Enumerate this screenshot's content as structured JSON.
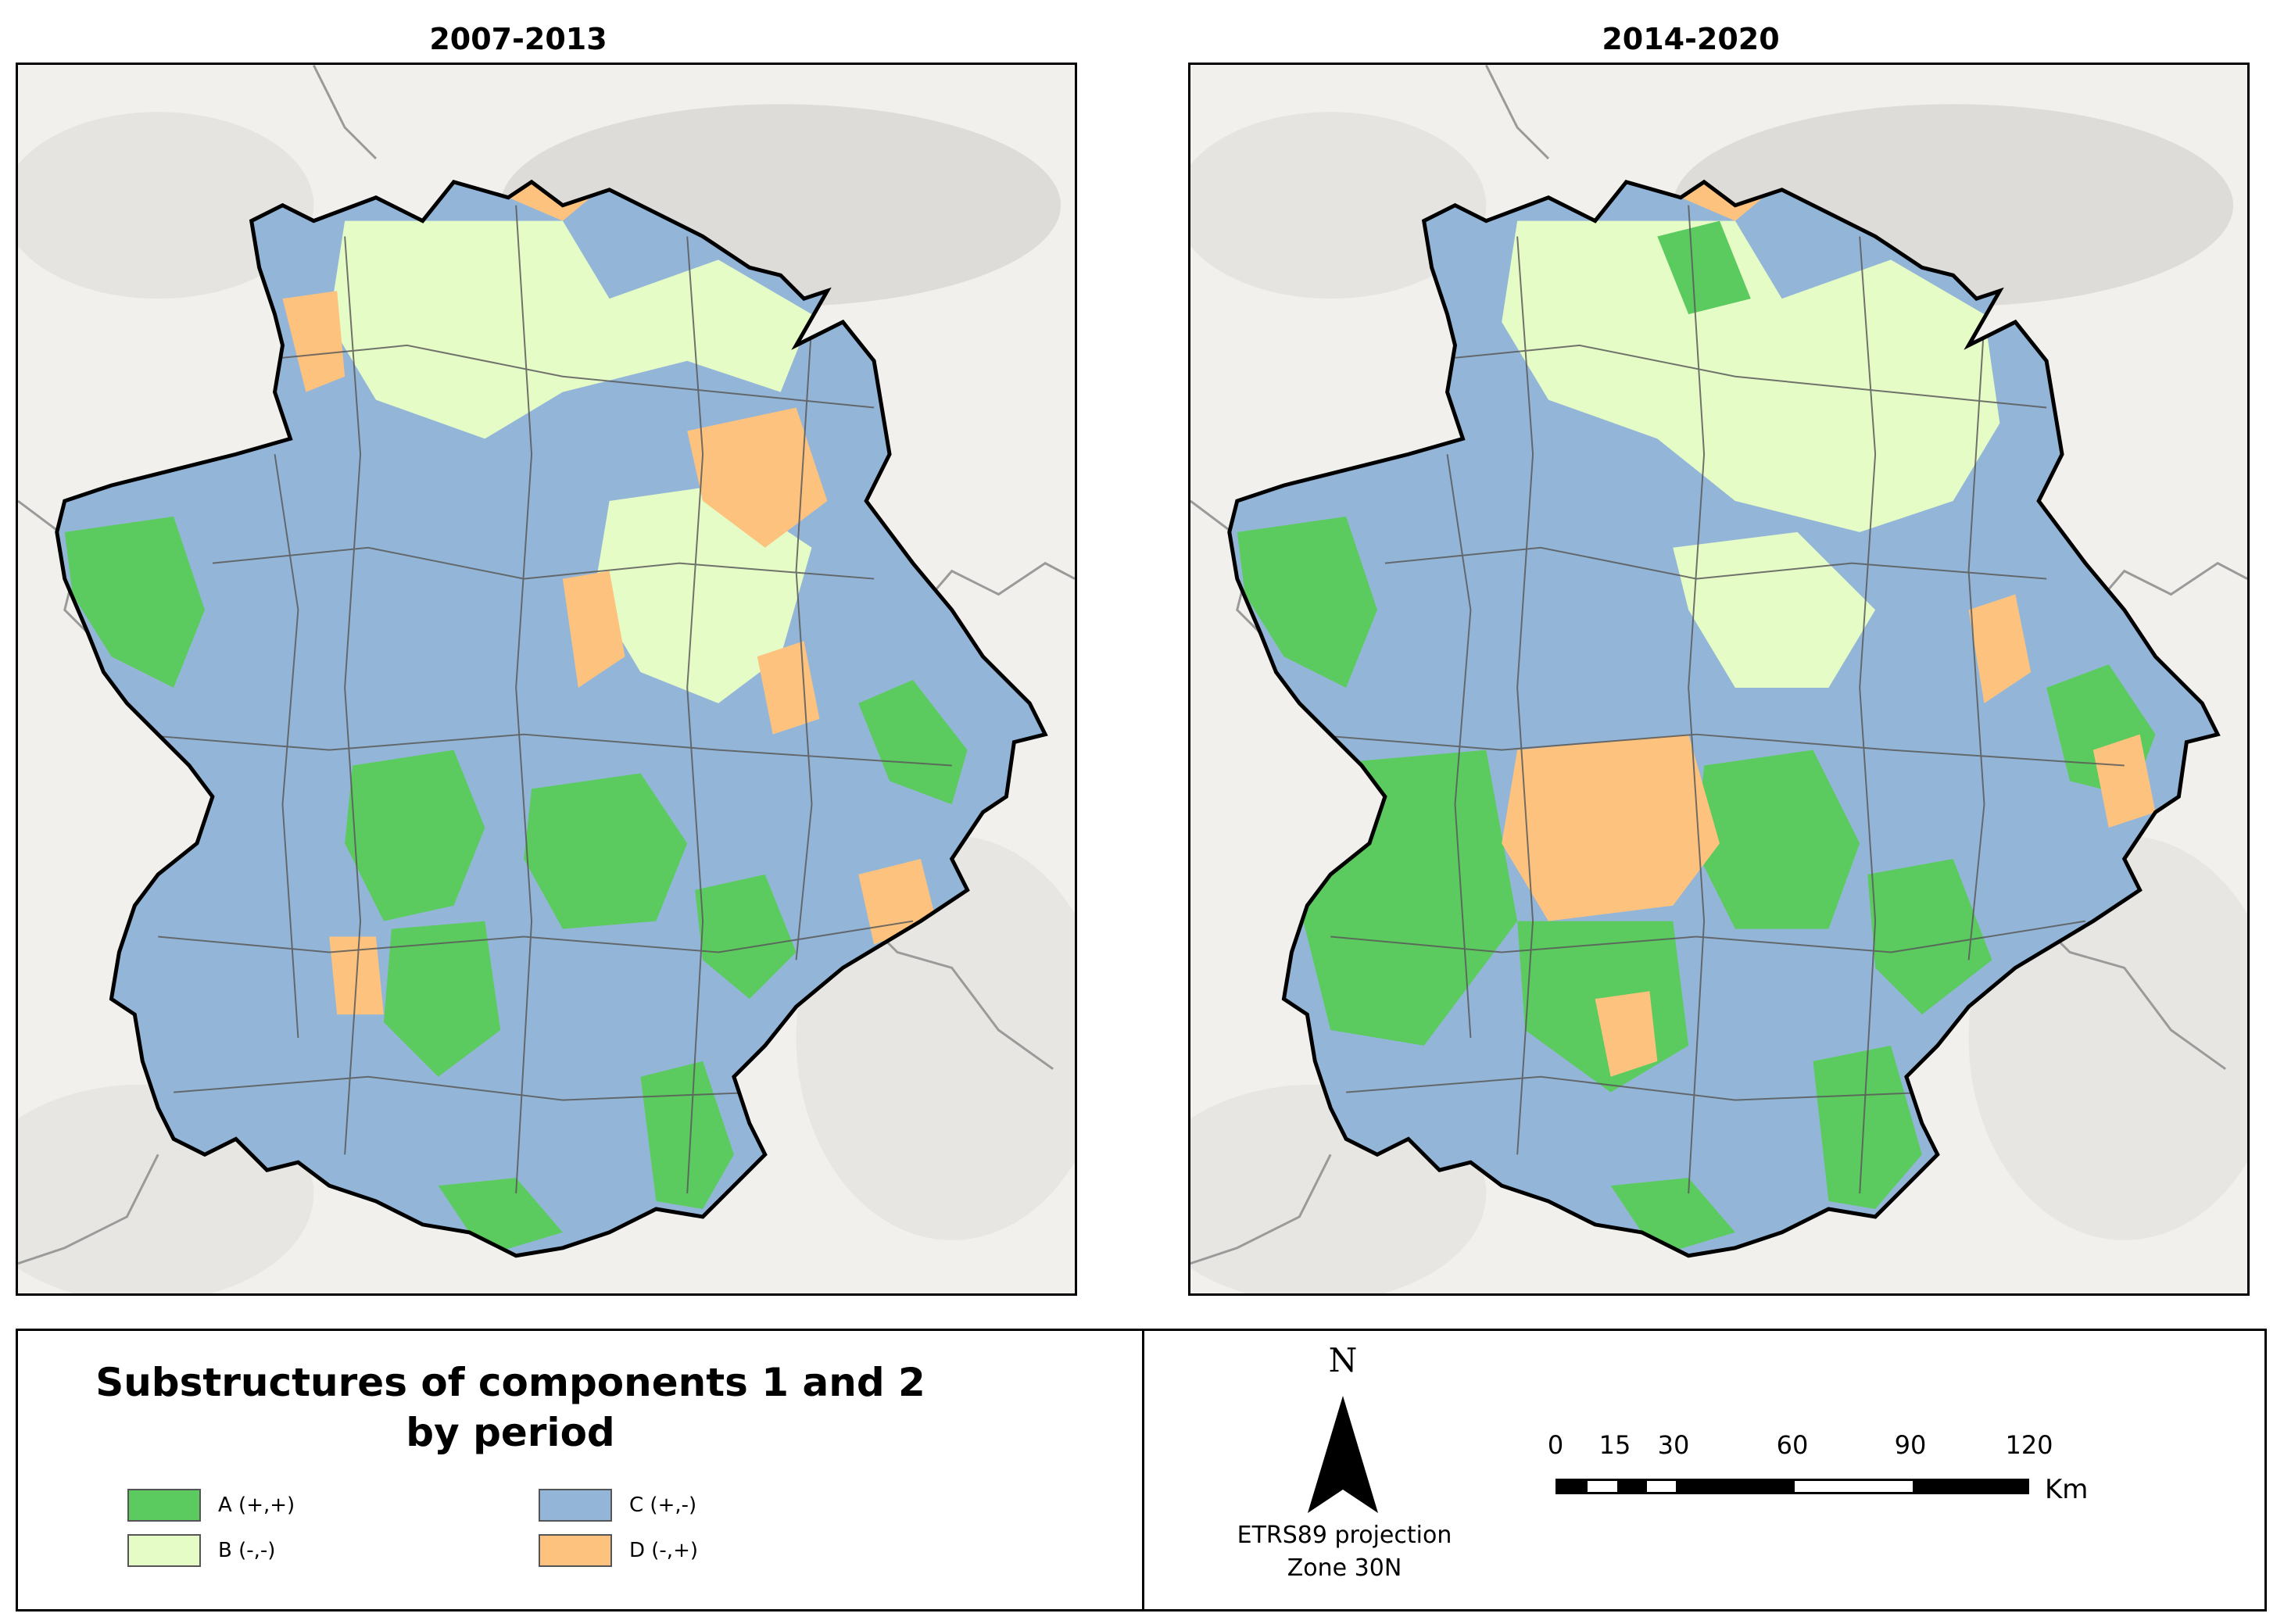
{
  "maps": [
    {
      "title": "2007-2013"
    },
    {
      "title": "2014-2020"
    }
  ],
  "legend": {
    "title_line1": "Substructures of components 1 and 2",
    "title_line2": "by period",
    "items": [
      {
        "label": "A (+,+)",
        "color": "#5ccb5f"
      },
      {
        "label": "B (-,-)",
        "color": "#e6fcc6"
      },
      {
        "label": "C (+,-)",
        "color": "#93b6d8"
      },
      {
        "label": "D (-,+)",
        "color": "#fdc27e"
      }
    ]
  },
  "north": {
    "letter": "N"
  },
  "projection": {
    "line1": "ETRS89 projection",
    "line2": "Zone 30N"
  },
  "scale": {
    "ticks": [
      "0",
      "15",
      "30",
      "60",
      "90",
      "120"
    ],
    "unit": "Km"
  },
  "colors": {
    "background": "#f1f0ed",
    "relief": "#d9d7d2",
    "boundary": "#000000",
    "internal_boundary": "#5a5a5a",
    "admin_line": "#9a9a9a"
  }
}
